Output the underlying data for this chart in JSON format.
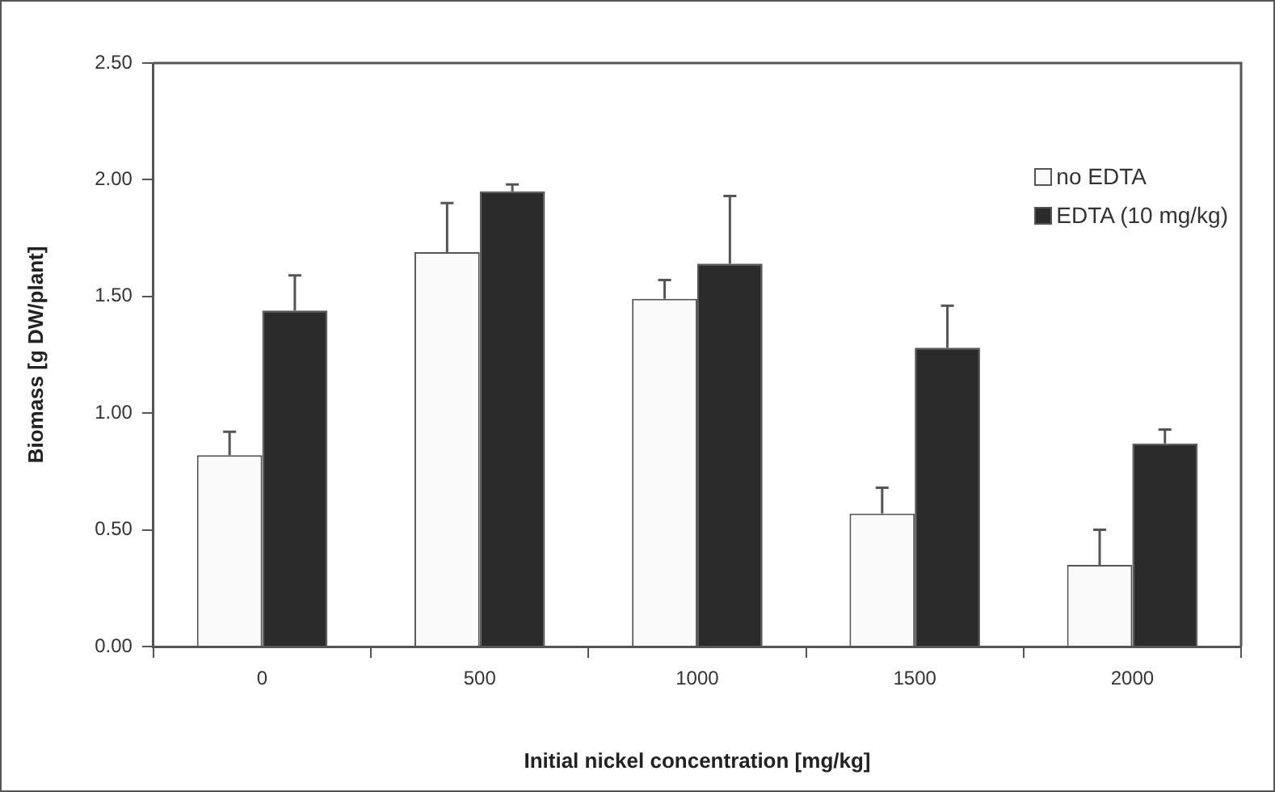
{
  "chart_data": {
    "type": "bar",
    "xlabel": "Initial nickel concentration [mg/kg]",
    "ylabel": "Biomass [g DW/plant]",
    "categories": [
      "0",
      "500",
      "1000",
      "1500",
      "2000"
    ],
    "series": [
      {
        "name": "no EDTA",
        "color": "#fafafa",
        "values": [
          0.82,
          1.69,
          1.49,
          0.57,
          0.35
        ],
        "errors": [
          [
            0.82,
            0.92
          ],
          [
            1.69,
            1.9
          ],
          [
            1.49,
            1.57
          ],
          [
            0.57,
            0.68
          ],
          [
            0.35,
            0.5
          ]
        ]
      },
      {
        "name": "EDTA (10 mg/kg)",
        "color": "#2b2b2b",
        "values": [
          1.44,
          1.95,
          1.64,
          1.28,
          0.87
        ],
        "errors": [
          [
            1.44,
            1.59
          ],
          [
            1.95,
            1.98
          ],
          [
            1.64,
            1.93
          ],
          [
            1.28,
            1.46
          ],
          [
            0.87,
            0.93
          ]
        ]
      }
    ],
    "ylim": [
      0,
      2.5
    ],
    "yticks": [
      {
        "value": 0,
        "label": "0.00"
      },
      {
        "value": 0.5,
        "label": "0.50"
      },
      {
        "value": 1,
        "label": "1.00"
      },
      {
        "value": 1.5,
        "label": "1.50"
      },
      {
        "value": 2,
        "label": "2.00"
      },
      {
        "value": 2.5,
        "label": "2.50"
      }
    ],
    "grid": false,
    "legend": "top right"
  }
}
